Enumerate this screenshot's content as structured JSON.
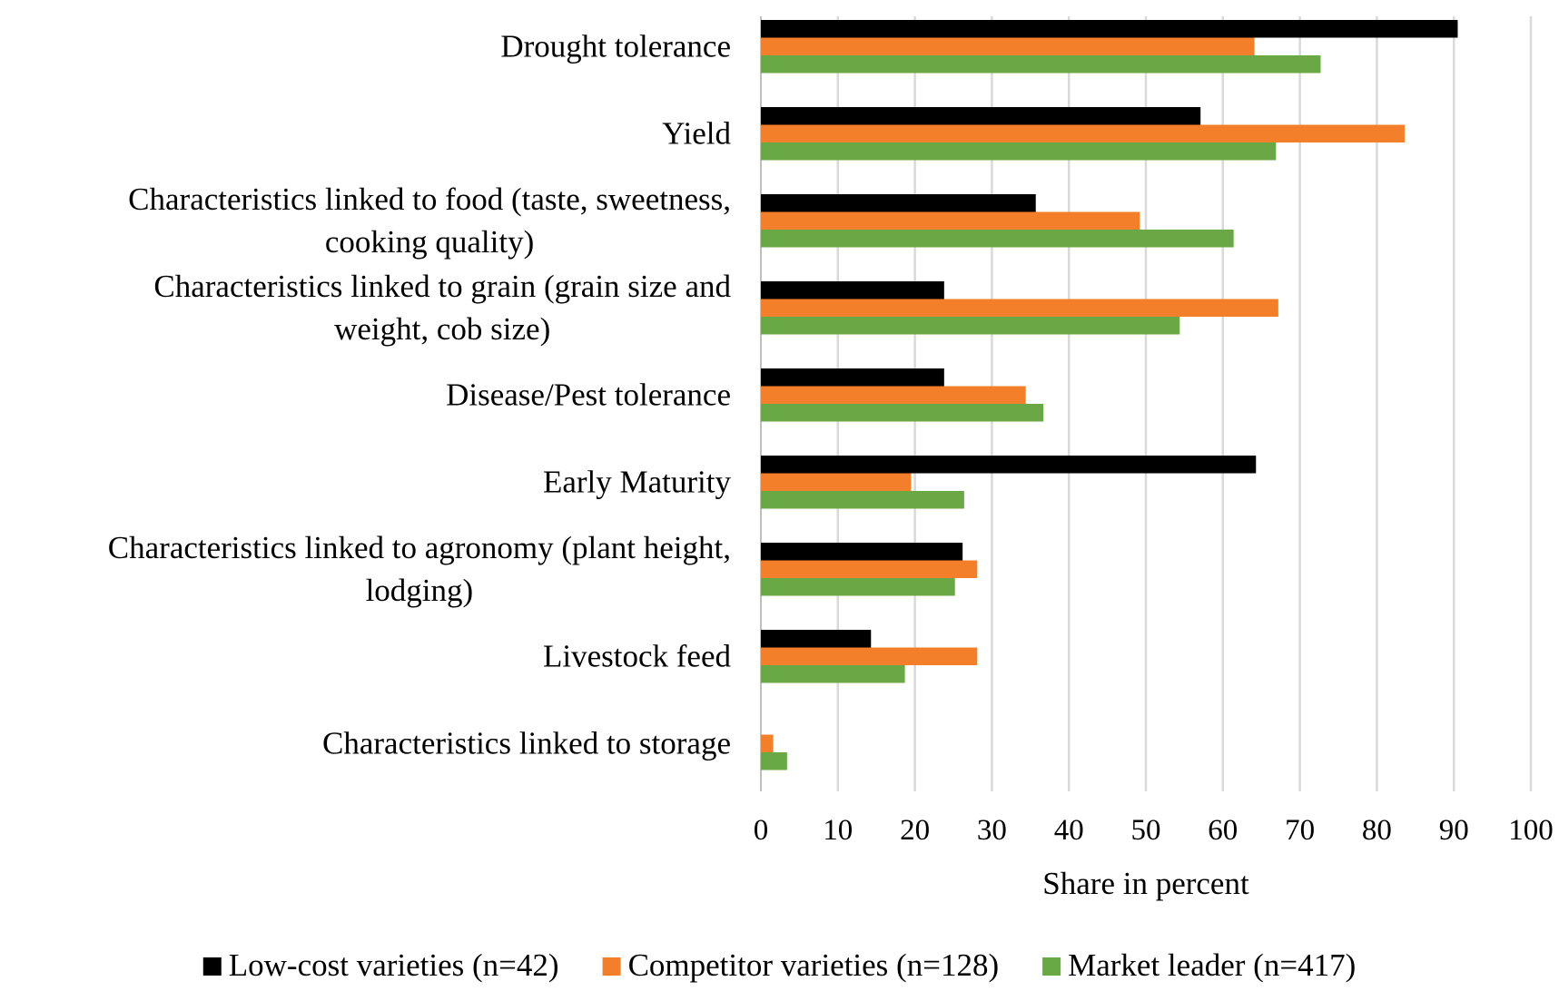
{
  "chart_data": {
    "type": "bar",
    "orientation": "horizontal",
    "title": "",
    "xlabel": "Share in percent",
    "ylabel": "",
    "xlim": [
      0,
      100
    ],
    "x_ticks": [
      "0",
      "10",
      "20",
      "30",
      "40",
      "50",
      "60",
      "70",
      "80",
      "90",
      "100"
    ],
    "grid": "vertical",
    "legend_position": "bottom",
    "categories": [
      [
        "Drought tolerance"
      ],
      [
        "Yield"
      ],
      [
        "Characteristics linked to food (taste, sweetness,",
        "cooking quality)"
      ],
      [
        "Characteristics linked to grain (grain size and",
        "weight, cob size)"
      ],
      [
        "Disease/Pest tolerance"
      ],
      [
        "Early Maturity"
      ],
      [
        "Characteristics linked to agronomy (plant height,",
        "lodging)"
      ],
      [
        "Livestock feed"
      ],
      [
        "Characteristics linked to storage"
      ]
    ],
    "series": [
      {
        "name": "Low-cost varieties (n=42)",
        "color": "#000000",
        "values": [
          90.5,
          57.1,
          35.7,
          23.8,
          23.8,
          64.3,
          26.2,
          14.3,
          0
        ]
      },
      {
        "name": "Competitor varieties (n=128)",
        "color": "#f47f2a",
        "values": [
          64.1,
          83.6,
          49.2,
          67.2,
          34.4,
          19.5,
          28.1,
          28.1,
          1.6
        ]
      },
      {
        "name": "Market leader (n=417)",
        "color": "#6aa845",
        "values": [
          72.7,
          66.9,
          61.4,
          54.4,
          36.7,
          26.4,
          25.2,
          18.7,
          3.4
        ]
      }
    ]
  }
}
